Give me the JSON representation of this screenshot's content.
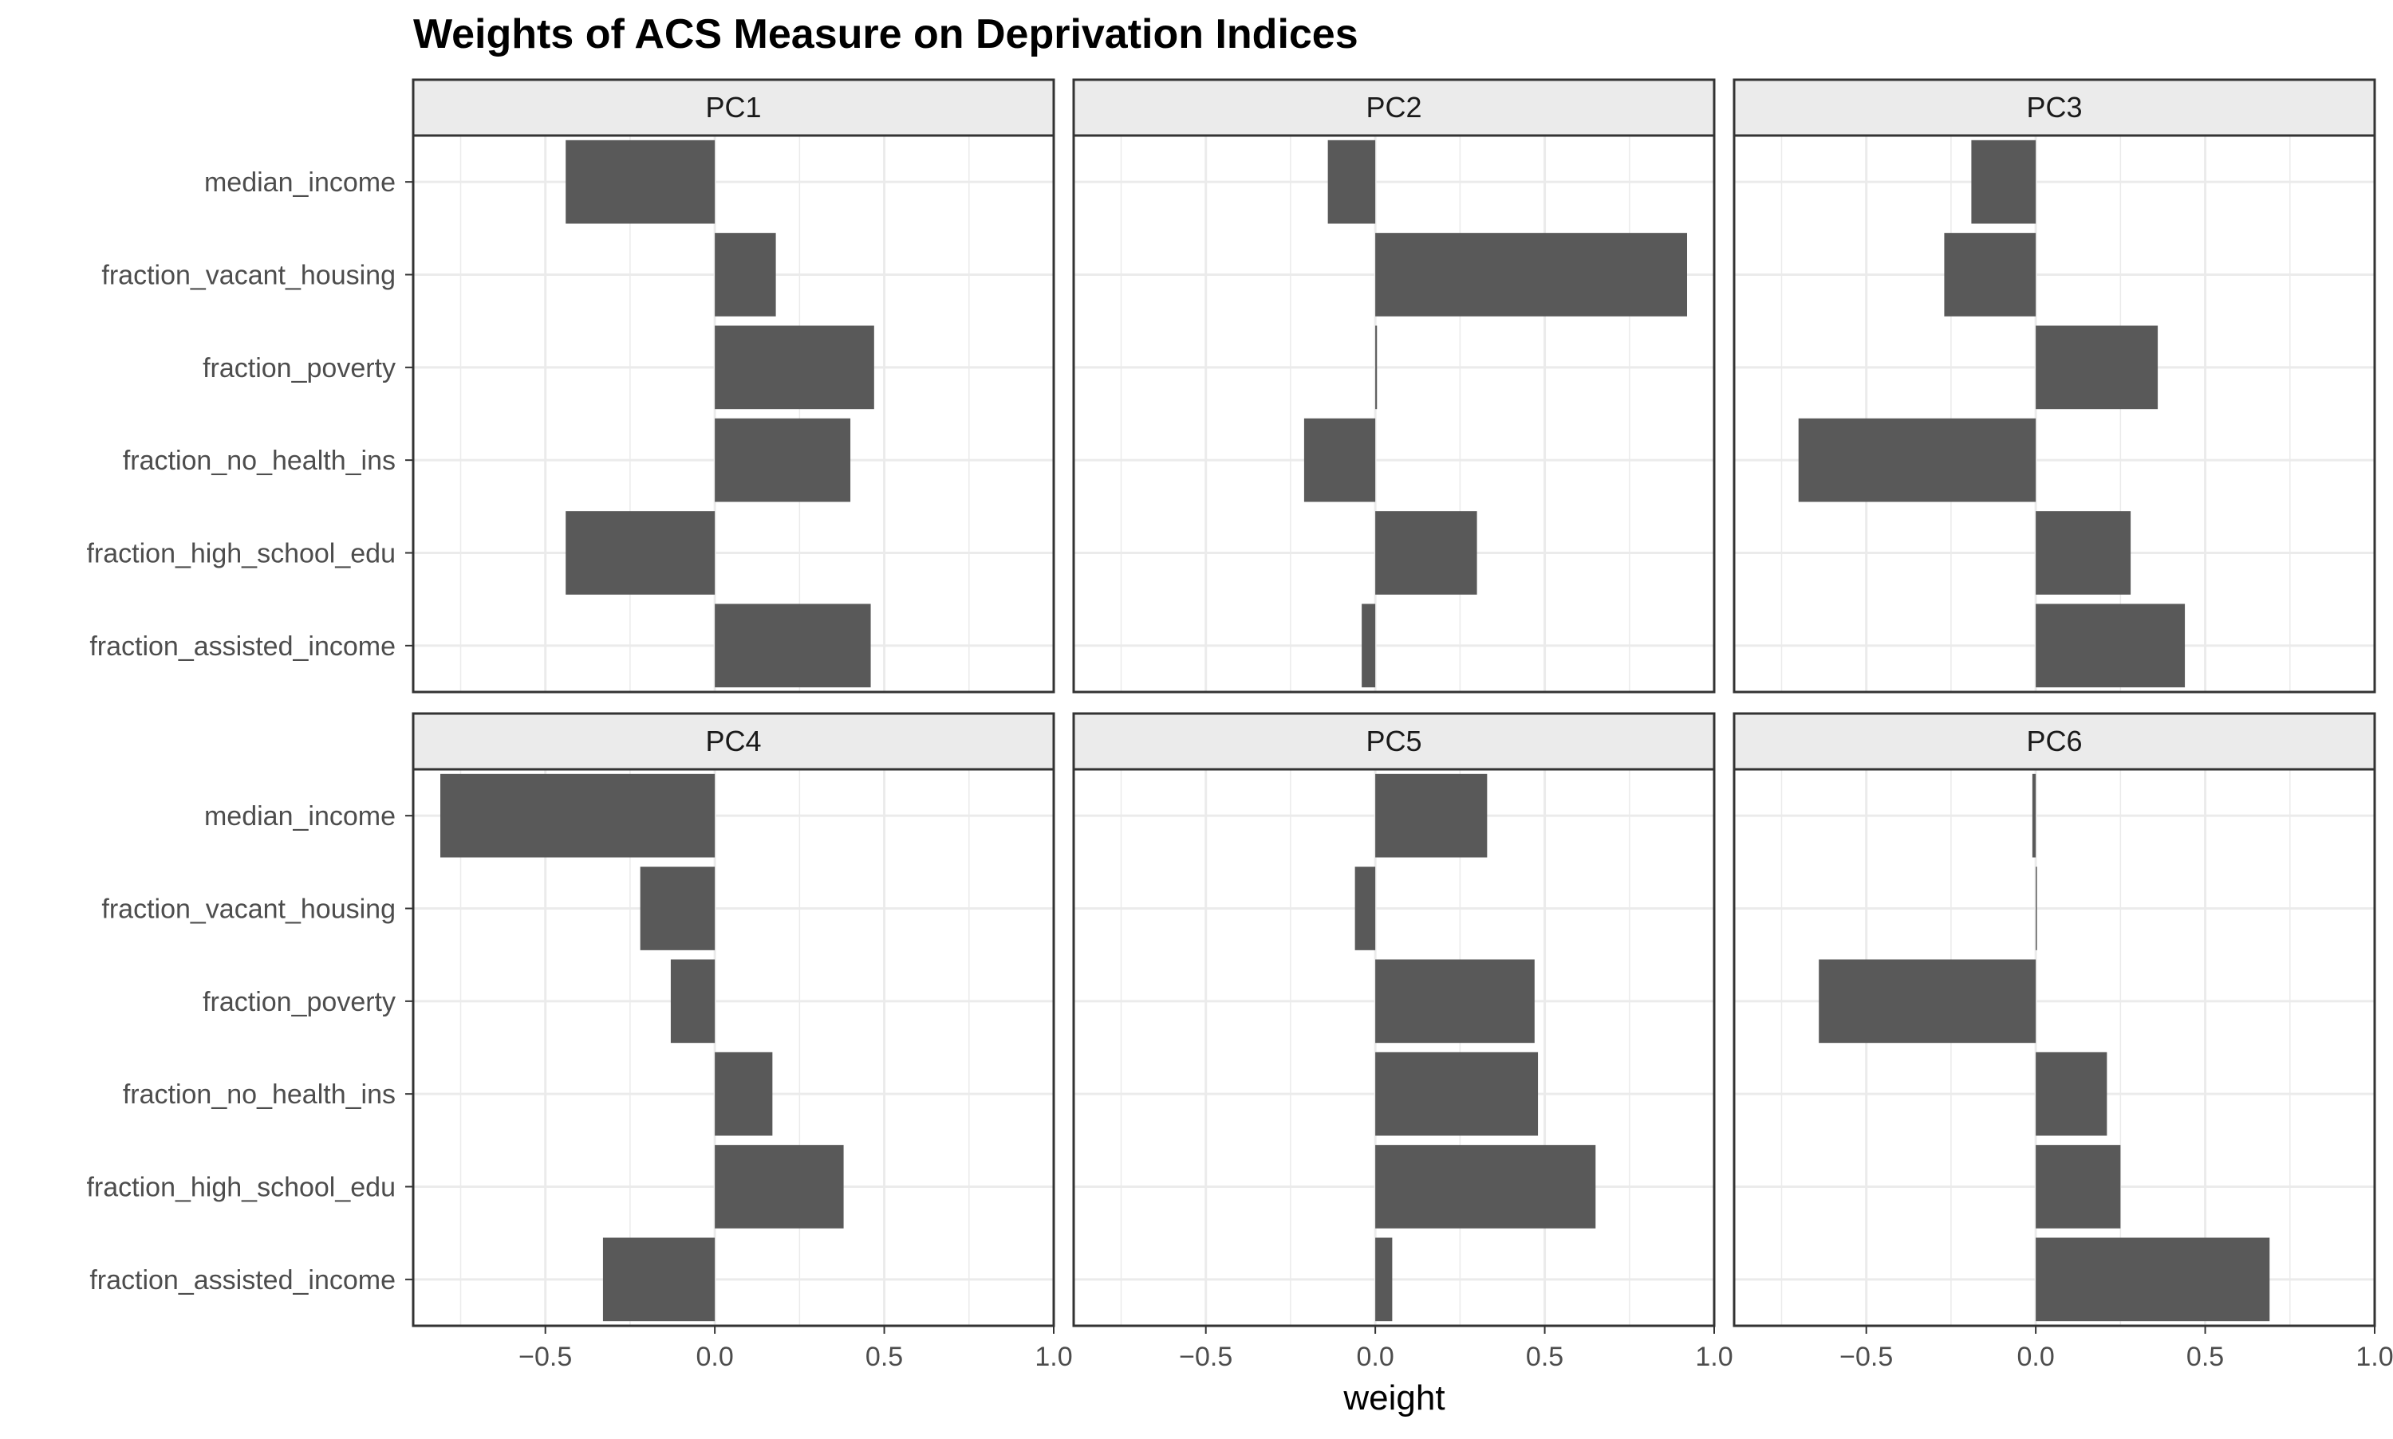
{
  "chart_data": {
    "type": "bar",
    "orientation": "horizontal",
    "title": "Weights of ACS Measure on Deprivation Indices",
    "xlabel": "weight",
    "ylabel": "",
    "xlim": [
      -0.89,
      1.0
    ],
    "xticks": [
      -0.5,
      0.0,
      0.5,
      1.0
    ],
    "xtick_labels": [
      "−0.5",
      "0.0",
      "0.5",
      "1.0"
    ],
    "grid": true,
    "facets": {
      "rows": 2,
      "cols": 3
    },
    "categories": [
      "median_income",
      "fraction_vacant_housing",
      "fraction_poverty",
      "fraction_no_health_ins",
      "fraction_high_school_edu",
      "fraction_assisted_income"
    ],
    "series": [
      {
        "name": "PC1",
        "values": [
          -0.44,
          0.18,
          0.47,
          0.4,
          -0.44,
          0.46
        ]
      },
      {
        "name": "PC2",
        "values": [
          -0.14,
          0.92,
          0.005,
          -0.21,
          0.3,
          -0.04
        ]
      },
      {
        "name": "PC3",
        "values": [
          -0.19,
          -0.27,
          0.36,
          -0.7,
          0.28,
          0.44
        ]
      },
      {
        "name": "PC4",
        "values": [
          -0.81,
          -0.22,
          -0.13,
          0.17,
          0.38,
          -0.33
        ]
      },
      {
        "name": "PC5",
        "values": [
          0.33,
          -0.06,
          0.47,
          0.48,
          0.65,
          0.05
        ]
      },
      {
        "name": "PC6",
        "values": [
          -0.01,
          0.003,
          -0.64,
          0.21,
          0.25,
          0.69
        ]
      }
    ],
    "colors": {
      "bar": "#595959",
      "strip_bg": "#ebebeb",
      "grid": "#ebebeb",
      "border": "#333333"
    }
  }
}
